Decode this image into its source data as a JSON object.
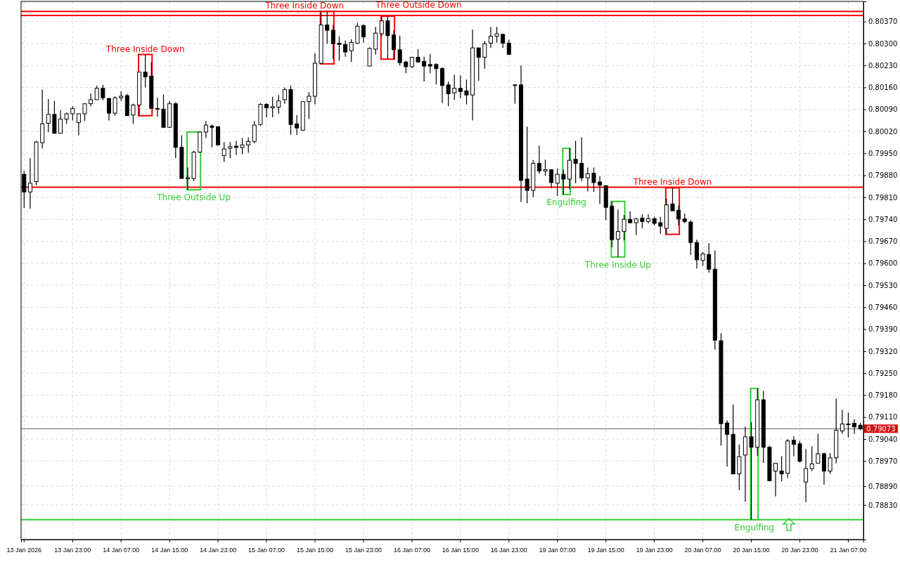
{
  "chart_data": {
    "type": "candlestick",
    "color": "#000000",
    "categories": [
      "13 Jan 2026",
      null,
      null,
      null,
      null,
      null,
      null,
      null,
      "13 Jan 23:00",
      null,
      null,
      null,
      null,
      null,
      null,
      null,
      "14 Jan 07:00",
      null,
      null,
      null,
      null,
      null,
      null,
      null,
      "14 Jan 15:00",
      null,
      null,
      null,
      null,
      null,
      null,
      null,
      "14 Jan 23:00",
      null,
      null,
      null,
      null,
      null,
      null,
      null,
      "15 Jan 07:00",
      null,
      null,
      null,
      null,
      null,
      null,
      null,
      "15 Jan 15:00",
      null,
      null,
      null,
      null,
      null,
      null,
      null,
      "15 Jan 23:00",
      null,
      null,
      null,
      null,
      null,
      null,
      null,
      "16 Jan 07:00",
      null,
      null,
      null,
      null,
      null,
      null,
      null,
      "16 Jan 15:00",
      null,
      null,
      null,
      null,
      null,
      null,
      null,
      "16 Jan 23:00",
      null,
      null,
      null,
      null,
      null,
      null,
      null,
      "19 Jan 07:00",
      null,
      null,
      null,
      null,
      null,
      null,
      null,
      "19 Jan 15:00",
      null,
      null,
      null,
      null,
      null,
      null,
      null,
      "19 Jan 23:00",
      null,
      null,
      null,
      null,
      null,
      null,
      null,
      "20 Jan 07:00",
      null,
      null,
      null,
      null,
      null,
      null,
      null,
      "20 Jan 15:00",
      null,
      null,
      null,
      null,
      null,
      null,
      null,
      "20 Jan 23:00",
      null,
      null,
      null,
      null,
      null,
      null,
      null,
      "21 Jan 07:00",
      null,
      null
    ],
    "ohlc": [
      [
        0.79883,
        0.79893,
        0.79776,
        0.79827
      ],
      [
        0.79827,
        0.79935,
        0.79774,
        0.79855
      ],
      [
        0.7986,
        0.7999,
        0.79849,
        0.79986
      ],
      [
        0.79984,
        0.80153,
        0.79965,
        0.80044
      ],
      [
        0.80046,
        0.80123,
        0.80018,
        0.80074
      ],
      [
        0.80074,
        0.80117,
        0.80012,
        0.80014
      ],
      [
        0.80014,
        0.80087,
        0.80014,
        0.80059
      ],
      [
        0.80059,
        0.8008,
        0.80044,
        0.80076
      ],
      [
        0.80076,
        0.801,
        0.80055,
        0.80093
      ],
      [
        0.80048,
        0.80076,
        0.80008,
        0.80076
      ],
      [
        0.80076,
        0.80108,
        0.80053,
        0.80108
      ],
      [
        0.80108,
        0.80141,
        0.801,
        0.80121
      ],
      [
        0.80121,
        0.80166,
        0.80121,
        0.80157
      ],
      [
        0.80157,
        0.80168,
        0.80119,
        0.80127
      ],
      [
        0.80125,
        0.80125,
        0.80055,
        0.80078
      ],
      [
        0.80078,
        0.80132,
        0.8007,
        0.80127
      ],
      [
        0.80127,
        0.80147,
        0.80117,
        0.80132
      ],
      [
        0.80134,
        0.8014,
        0.8007,
        0.8007
      ],
      [
        0.80072,
        0.80108,
        0.80044,
        0.80104
      ],
      [
        0.80104,
        0.80209,
        0.8007,
        0.80209
      ],
      [
        0.80209,
        0.80265,
        0.8016,
        0.80194
      ],
      [
        0.80196,
        0.80241,
        0.80093,
        0.80093
      ],
      [
        0.80093,
        0.80127,
        0.80067,
        0.80091
      ],
      [
        0.80091,
        0.80138,
        0.80031,
        0.80033
      ],
      [
        0.80033,
        0.80117,
        0.80031,
        0.80108
      ],
      [
        0.80108,
        0.80113,
        0.79935,
        0.79969
      ],
      [
        0.79969,
        0.80008,
        0.7987,
        0.7987
      ],
      [
        0.7987,
        0.79905,
        0.79834,
        0.79872
      ],
      [
        0.7987,
        0.79958,
        0.79862,
        0.79954
      ],
      [
        0.79954,
        0.80018,
        0.79952,
        0.80018
      ],
      [
        0.80018,
        0.80053,
        0.79999,
        0.8004
      ],
      [
        0.80037,
        0.80042,
        0.79969,
        0.80033
      ],
      [
        0.80035,
        0.80035,
        0.79975,
        0.79977
      ],
      [
        0.79943,
        0.79986,
        0.79922,
        0.79964
      ],
      [
        0.79966,
        0.79986,
        0.79935,
        0.79971
      ],
      [
        0.79973,
        0.7999,
        0.79945,
        0.79969
      ],
      [
        0.79969,
        0.79999,
        0.79947,
        0.79977
      ],
      [
        0.79977,
        0.80001,
        0.79952,
        0.79988
      ],
      [
        0.79988,
        0.80053,
        0.79982,
        0.8004
      ],
      [
        0.80042,
        0.8011,
        0.80037,
        0.80106
      ],
      [
        0.80106,
        0.8011,
        0.80065,
        0.80095
      ],
      [
        0.80095,
        0.8013,
        0.80065,
        0.80099
      ],
      [
        0.80097,
        0.80136,
        0.80076,
        0.80117
      ],
      [
        0.80121,
        0.8016,
        0.80108,
        0.80153
      ],
      [
        0.80153,
        0.80166,
        0.80009,
        0.80042
      ],
      [
        0.80044,
        0.80072,
        0.80009,
        0.80031
      ],
      [
        0.80024,
        0.80115,
        0.80022,
        0.80115
      ],
      [
        0.80115,
        0.80145,
        0.80059,
        0.80132
      ],
      [
        0.80132,
        0.80269,
        0.80106,
        0.80237
      ],
      [
        0.80237,
        0.80402,
        0.80235,
        0.80359
      ],
      [
        0.80359,
        0.80402,
        0.80299,
        0.80342
      ],
      [
        0.80342,
        0.80359,
        0.8025,
        0.80299
      ],
      [
        0.80301,
        0.80323,
        0.80245,
        0.80297
      ],
      [
        0.80297,
        0.8031,
        0.80258,
        0.80273
      ],
      [
        0.80277,
        0.80314,
        0.80241,
        0.80303
      ],
      [
        0.80301,
        0.80366,
        0.80299,
        0.80355
      ],
      [
        0.80357,
        0.80361,
        0.80303,
        0.80321
      ],
      [
        0.80228,
        0.80288,
        0.80228,
        0.80284
      ],
      [
        0.80282,
        0.80353,
        0.80265,
        0.80333
      ],
      [
        0.80331,
        0.80387,
        0.80323,
        0.80372
      ],
      [
        0.80372,
        0.80387,
        0.8025,
        0.80325
      ],
      [
        0.80327,
        0.80342,
        0.8025,
        0.8028
      ],
      [
        0.8028,
        0.80325,
        0.8023,
        0.80239
      ],
      [
        0.80241,
        0.80245,
        0.80205,
        0.80226
      ],
      [
        0.80226,
        0.80256,
        0.80222,
        0.80256
      ],
      [
        0.80256,
        0.80282,
        0.80241,
        0.80241
      ],
      [
        0.80243,
        0.80258,
        0.80179,
        0.80228
      ],
      [
        0.80233,
        0.80267,
        0.80205,
        0.80228
      ],
      [
        0.80233,
        0.80237,
        0.8017,
        0.8022
      ],
      [
        0.8022,
        0.80224,
        0.8011,
        0.80166
      ],
      [
        0.80168,
        0.80179,
        0.801,
        0.8014
      ],
      [
        0.80143,
        0.802,
        0.80121,
        0.80157
      ],
      [
        0.80157,
        0.80198,
        0.80125,
        0.80147
      ],
      [
        0.80149,
        0.80185,
        0.80106,
        0.80136
      ],
      [
        0.80136,
        0.80344,
        0.80055,
        0.80286
      ],
      [
        0.80286,
        0.80286,
        0.80181,
        0.80256
      ],
      [
        0.80256,
        0.80308,
        0.8022,
        0.80299
      ],
      [
        0.80301,
        0.80353,
        0.80286,
        0.80323
      ],
      [
        0.80323,
        0.80353,
        0.80303,
        0.80331
      ],
      [
        0.80329,
        0.80331,
        0.80286,
        0.80301
      ],
      [
        0.80301,
        0.80312,
        0.80265,
        0.80265
      ],
      [
        0.80168,
        0.8017,
        0.80108,
        0.80166
      ],
      [
        0.80168,
        0.8023,
        0.79795,
        0.79864
      ],
      [
        0.79868,
        0.80035,
        0.79791,
        0.79832
      ],
      [
        0.79832,
        0.79929,
        0.7981,
        0.79918
      ],
      [
        0.79918,
        0.79975,
        0.79885,
        0.79894
      ],
      [
        0.79894,
        0.7993,
        0.79879,
        0.79898
      ],
      [
        0.79898,
        0.79898,
        0.7984,
        0.79857
      ],
      [
        0.79855,
        0.79902,
        0.79814,
        0.79883
      ],
      [
        0.79883,
        0.79898,
        0.79819,
        0.79868
      ],
      [
        0.79868,
        0.79966,
        0.79836,
        0.79928
      ],
      [
        0.79931,
        0.7999,
        0.79855,
        0.79918
      ],
      [
        0.79918,
        0.80001,
        0.79862,
        0.79872
      ],
      [
        0.79872,
        0.79905,
        0.79829,
        0.79885
      ],
      [
        0.79887,
        0.79905,
        0.79827,
        0.79857
      ],
      [
        0.79859,
        0.79877,
        0.79789,
        0.79849
      ],
      [
        0.79847,
        0.79847,
        0.79737,
        0.79778
      ],
      [
        0.79782,
        0.79797,
        0.79651,
        0.79675
      ],
      [
        0.79677,
        0.79771,
        0.7962,
        0.79701
      ],
      [
        0.79701,
        0.79754,
        0.79673,
        0.7974
      ],
      [
        0.7974,
        0.79765,
        0.79727,
        0.79729
      ],
      [
        0.79729,
        0.79744,
        0.7969,
        0.79741
      ],
      [
        0.79744,
        0.79756,
        0.79711,
        0.79733
      ],
      [
        0.79733,
        0.79756,
        0.79727,
        0.79742
      ],
      [
        0.79742,
        0.79748,
        0.7972,
        0.79727
      ],
      [
        0.79729,
        0.79748,
        0.79694,
        0.79718
      ],
      [
        0.79711,
        0.79806,
        0.79692,
        0.79786
      ],
      [
        0.79789,
        0.7984,
        0.79767,
        0.79767
      ],
      [
        0.79769,
        0.79784,
        0.7972,
        0.79741
      ],
      [
        0.79741,
        0.79759,
        0.79727,
        0.79733
      ],
      [
        0.79731,
        0.79737,
        0.79626,
        0.79666
      ],
      [
        0.79666,
        0.79675,
        0.79583,
        0.79611
      ],
      [
        0.79609,
        0.79636,
        0.79591,
        0.7963
      ],
      [
        0.79628,
        0.79664,
        0.7957,
        0.79581
      ],
      [
        0.79581,
        0.79641,
        0.79325,
        0.79355
      ],
      [
        0.79353,
        0.79377,
        0.79019,
        0.79089
      ],
      [
        0.79091,
        0.791,
        0.78952,
        0.79055
      ],
      [
        0.79055,
        0.7915,
        0.78929,
        0.78929
      ],
      [
        0.78929,
        0.79023,
        0.78877,
        0.78984
      ],
      [
        0.78989,
        0.79079,
        0.7884,
        0.79047
      ],
      [
        0.79047,
        0.79094,
        0.78783,
        0.79014
      ],
      [
        0.79014,
        0.79201,
        0.78987,
        0.79165
      ],
      [
        0.79165,
        0.79193,
        0.78964,
        0.79014
      ],
      [
        0.79014,
        0.79019,
        0.78907,
        0.78907
      ],
      [
        0.78938,
        0.78964,
        0.78857,
        0.78963
      ],
      [
        0.78938,
        0.78985,
        0.78905,
        0.78929
      ],
      [
        0.78931,
        0.7904,
        0.78916,
        0.79034
      ],
      [
        0.79036,
        0.79049,
        0.78985,
        0.79023
      ],
      [
        0.79025,
        0.79034,
        0.78965,
        0.78969
      ],
      [
        0.78903,
        0.79008,
        0.78839,
        0.78946
      ],
      [
        0.78946,
        0.79017,
        0.78938,
        0.78961
      ],
      [
        0.78963,
        0.79057,
        0.78963,
        0.78993
      ],
      [
        0.78993,
        0.78997,
        0.78895,
        0.78938
      ],
      [
        0.78938,
        0.78995,
        0.78929,
        0.7898
      ],
      [
        0.7898,
        0.79169,
        0.78963,
        0.79068
      ],
      [
        0.79066,
        0.79133,
        0.79057,
        0.79088
      ],
      [
        0.79088,
        0.79124,
        0.79045,
        0.79086
      ],
      [
        0.7909,
        0.79103,
        0.79057,
        0.79079
      ],
      [
        0.79084,
        0.79092,
        0.79068,
        0.79073
      ]
    ],
    "ylim": [
      0.7872,
      0.80434
    ],
    "yticks": [
      {
        "value": 0.8037,
        "label": "0.80370"
      },
      {
        "value": 0.803,
        "label": "0.80300"
      },
      {
        "value": 0.8023,
        "label": "0.80230"
      },
      {
        "value": 0.8016,
        "label": "0.80160"
      },
      {
        "value": 0.8009,
        "label": "0.80090"
      },
      {
        "value": 0.8002,
        "label": "0.80020"
      },
      {
        "value": 0.7995,
        "label": "0.79950"
      },
      {
        "value": 0.7988,
        "label": "0.79880"
      },
      {
        "value": 0.7981,
        "label": "0.79810"
      },
      {
        "value": 0.7974,
        "label": "0.79740"
      },
      {
        "value": 0.7967,
        "label": "0.79670"
      },
      {
        "value": 0.796,
        "label": "0.79600"
      },
      {
        "value": 0.7953,
        "label": "0.79530"
      },
      {
        "value": 0.7946,
        "label": "0.79460"
      },
      {
        "value": 0.7939,
        "label": "0.79390"
      },
      {
        "value": 0.7932,
        "label": "0.79320"
      },
      {
        "value": 0.7925,
        "label": "0.79250"
      },
      {
        "value": 0.7918,
        "label": "0.79180"
      },
      {
        "value": 0.7911,
        "label": "0.79110"
      },
      {
        "value": 0.7904,
        "label": "0.79040"
      },
      {
        "value": 0.7897,
        "label": "0.78970"
      },
      {
        "value": 0.7889,
        "label": "0.78890"
      },
      {
        "value": 0.7883,
        "label": "0.78830"
      }
    ],
    "grid": true,
    "ref_lines": [
      {
        "axis": "y",
        "value": 0.80402,
        "label": null,
        "color": "#ff0000"
      },
      {
        "axis": "y",
        "value": 0.80389,
        "label": null,
        "color": "#ff0000"
      },
      {
        "axis": "y",
        "value": 0.79842,
        "label": null,
        "color": "#ff0000"
      },
      {
        "axis": "y",
        "value": 0.78783,
        "label": null,
        "color": "#32cd32"
      },
      {
        "axis": "y",
        "value": 0.79073,
        "label": "0.79073",
        "color": "#606060"
      }
    ],
    "annotations": [
      "Three Inside Down",
      "Three Outside Up",
      "Three Inside Down",
      "Three Outside Down",
      "Engulfing",
      "Three Inside Up",
      "Three Inside Down",
      "Engulfing"
    ]
  }
}
